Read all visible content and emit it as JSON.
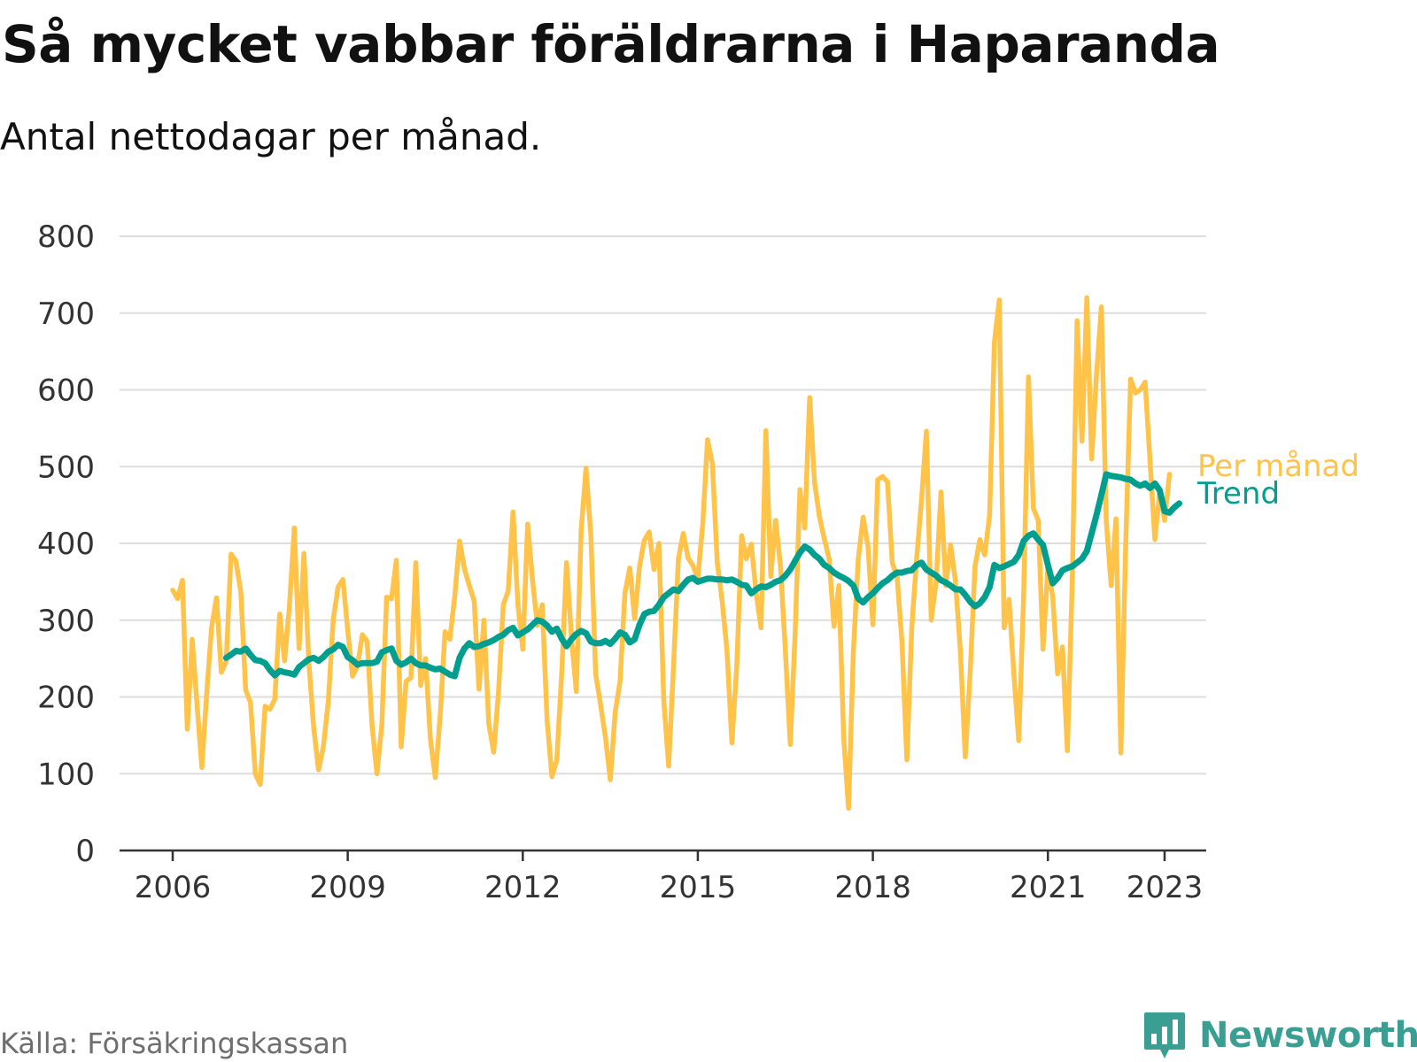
{
  "header": {
    "title": "Så mycket vabbar föräldrarna i Haparanda",
    "subtitle": "Antal nettodagar per månad."
  },
  "footer": {
    "source": "Källa: Försäkringskassan",
    "brand": "Newsworthy",
    "brand_icon": "bar-chart-bubble-icon"
  },
  "colors": {
    "monthly": "#ffc34a",
    "trend": "#009e8e",
    "grid": "#dddddd",
    "axis": "#333333",
    "brand": "#3a9e92"
  },
  "chart_data": {
    "type": "line",
    "x_unit": "year (decimal, monthly values)",
    "xlim": [
      2006,
      2023.5
    ],
    "ylim": [
      0,
      800
    ],
    "y_ticks": [
      0,
      100,
      200,
      300,
      400,
      500,
      600,
      700,
      800
    ],
    "x_ticks": [
      "2006",
      "2009",
      "2012",
      "2015",
      "2018",
      "2021",
      "2023"
    ],
    "x_tick_values": [
      2006,
      2009,
      2012,
      2015,
      2018,
      2021,
      2023
    ],
    "grid": true,
    "legend": "inline labels at line ends",
    "series": [
      {
        "name": "Per månad",
        "color": "#ffc34a",
        "start": 2006.0,
        "step": 0.0833333,
        "values": [
          339,
          328,
          352,
          158,
          275,
          190,
          108,
          205,
          290,
          329,
          232,
          246,
          386,
          377,
          337,
          209,
          193,
          100,
          86,
          188,
          184,
          197,
          308,
          247,
          318,
          420,
          263,
          387,
          245,
          160,
          105,
          136,
          194,
          300,
          343,
          353,
          287,
          227,
          240,
          281,
          272,
          163,
          100,
          163,
          330,
          328,
          378,
          135,
          220,
          225,
          375,
          215,
          250,
          145,
          95,
          175,
          285,
          275,
          330,
          403,
          367,
          345,
          325,
          210,
          300,
          165,
          128,
          205,
          320,
          338,
          441,
          320,
          262,
          425,
          352,
          293,
          320,
          170,
          96,
          118,
          230,
          375,
          278,
          207,
          417,
          498,
          410,
          230,
          190,
          148,
          92,
          180,
          220,
          335,
          368,
          302,
          370,
          404,
          415,
          366,
          400,
          195,
          110,
          240,
          380,
          413,
          381,
          371,
          354,
          424,
          535,
          503,
          375,
          325,
          260,
          140,
          240,
          410,
          380,
          399,
          335,
          290,
          547,
          357,
          430,
          370,
          260,
          138,
          280,
          470,
          420,
          590,
          480,
          435,
          406,
          380,
          292,
          345,
          148,
          55,
          260,
          380,
          434,
          396,
          294,
          483,
          487,
          480,
          375,
          356,
          270,
          118,
          290,
          380,
          456,
          546,
          300,
          350,
          467,
          345,
          398,
          350,
          260,
          122,
          230,
          370,
          405,
          385,
          437,
          662,
          717,
          290,
          327,
          230,
          143,
          330,
          617,
          446,
          430,
          262,
          370,
          330,
          230,
          265,
          130,
          350,
          690,
          533,
          720,
          510,
          620,
          708,
          430,
          345,
          432,
          127,
          400,
          614,
          596,
          600,
          610,
          508,
          405,
          468,
          430,
          490
        ]
      },
      {
        "name": "Trend",
        "color": "#009e8e",
        "start": 2006.9167,
        "step": 0.0833333,
        "values": [
          251,
          255,
          260,
          259,
          263,
          255,
          248,
          247,
          244,
          235,
          228,
          234,
          232,
          231,
          229,
          239,
          244,
          249,
          251,
          247,
          252,
          259,
          262,
          268,
          265,
          252,
          248,
          242,
          244,
          244,
          244,
          246,
          258,
          261,
          263,
          247,
          242,
          245,
          250,
          244,
          241,
          241,
          238,
          236,
          237,
          233,
          229,
          227,
          251,
          263,
          270,
          265,
          266,
          269,
          271,
          274,
          278,
          281,
          287,
          290,
          280,
          284,
          288,
          294,
          300,
          298,
          293,
          285,
          289,
          276,
          266,
          275,
          282,
          286,
          283,
          272,
          270,
          270,
          273,
          269,
          276,
          284,
          281,
          271,
          275,
          294,
          308,
          311,
          312,
          320,
          330,
          335,
          340,
          338,
          346,
          353,
          355,
          350,
          352,
          354,
          354,
          353,
          353,
          352,
          353,
          350,
          346,
          345,
          335,
          340,
          344,
          343,
          346,
          350,
          352,
          358,
          366,
          377,
          388,
          396,
          392,
          385,
          380,
          372,
          368,
          362,
          358,
          355,
          351,
          345,
          328,
          323,
          330,
          335,
          342,
          348,
          352,
          358,
          362,
          362,
          364,
          365,
          372,
          375,
          366,
          362,
          358,
          352,
          349,
          345,
          340,
          340,
          333,
          324,
          318,
          322,
          330,
          343,
          372,
          368,
          370,
          373,
          376,
          385,
          403,
          410,
          413,
          405,
          398,
          372,
          348,
          355,
          365,
          368,
          370,
          375,
          380,
          390,
          413,
          437,
          463,
          490,
          488,
          487,
          486,
          484,
          483,
          478,
          475,
          478,
          472,
          478,
          469,
          442,
          440,
          447,
          452
        ]
      }
    ]
  }
}
